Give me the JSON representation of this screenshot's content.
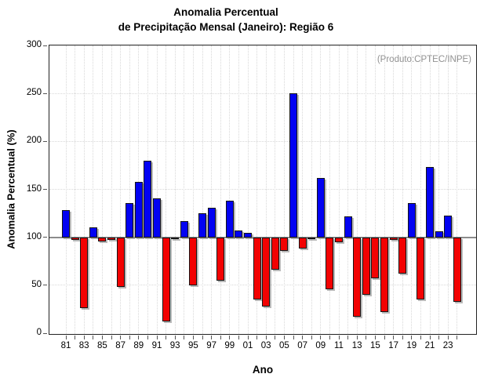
{
  "title": {
    "line1": "Anomalia Percentual",
    "line2": "de Precipitação Mensal (Janeiro): Região 6"
  },
  "annotation": "(Produto:CPTEC/INPE)",
  "axes": {
    "x_label": "Ano",
    "y_label": "Anomalia Percentual (%)"
  },
  "colors": {
    "above_baseline": "#0202f2",
    "below_baseline": "#f20202",
    "baseline_line": "#8c8c8c",
    "grid": "#d8d8d8",
    "annotation_text": "#919191"
  },
  "chart_data": {
    "type": "bar",
    "title": "Anomalia Percentual de Precipitação Mensal (Janeiro): Região 6",
    "xlabel": "Ano",
    "ylabel": "Anomalia Percentual (%)",
    "ylim": [
      0,
      300
    ],
    "y_ticks": [
      0,
      50,
      100,
      150,
      200,
      250,
      300
    ],
    "baseline": 100,
    "legend": "none",
    "grid": "dotted",
    "years": [
      1981,
      1982,
      1983,
      1984,
      1985,
      1986,
      1987,
      1988,
      1989,
      1990,
      1991,
      1992,
      1993,
      1994,
      1995,
      1996,
      1997,
      1998,
      1999,
      2000,
      2001,
      2002,
      2003,
      2004,
      2005,
      2006,
      2007,
      2008,
      2009,
      2010,
      2011,
      2012,
      2013,
      2014,
      2015,
      2016,
      2017,
      2018,
      2019,
      2020,
      2021,
      2022,
      2023,
      2024
    ],
    "values": [
      128,
      97,
      26,
      110,
      96,
      97,
      48,
      136,
      158,
      180,
      141,
      12,
      98,
      117,
      50,
      125,
      131,
      55,
      138,
      107,
      105,
      35,
      28,
      66,
      86,
      250,
      88,
      98,
      162,
      46,
      95,
      122,
      17,
      40,
      57,
      22,
      97,
      62,
      136,
      35,
      173,
      106,
      123,
      33
    ],
    "x_tick_labels": [
      "81",
      "83",
      "85",
      "87",
      "89",
      "91",
      "93",
      "95",
      "97",
      "99",
      "01",
      "03",
      "05",
      "07",
      "09",
      "11",
      "13",
      "15",
      "17",
      "19",
      "21",
      "23"
    ]
  }
}
